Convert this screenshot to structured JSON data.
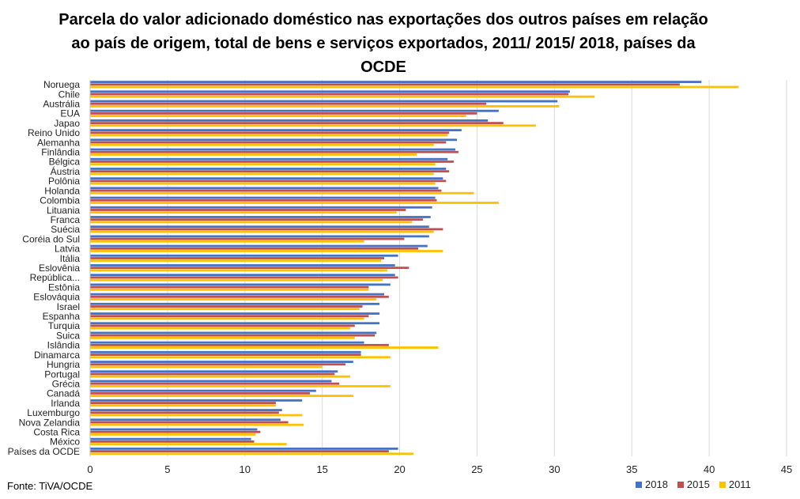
{
  "chart_data": {
    "type": "bar",
    "orientation": "horizontal",
    "title": "Parcela do valor adicionado doméstico nas exportações dos outros países em relação ao país de origem, total de bens e serviços exportados, 2011/ 2015/ 2018, países da OCDE",
    "source": "Fonte: TiVA/OCDE",
    "xlim": [
      0,
      45
    ],
    "xticks": [
      0,
      5,
      10,
      15,
      20,
      25,
      30,
      35,
      40,
      45
    ],
    "grid": "vertical",
    "legend_position": "bottom-right",
    "categories": [
      "Noruega",
      "Chile",
      "Austrália",
      "EUA",
      "Japao",
      "Reino Unido",
      "Alemanha",
      "Finlândia",
      "Bélgica",
      "Áustria",
      "Polônia",
      "Holanda",
      "Colombia",
      "Lituania",
      "Franca",
      "Suécia",
      "Coréia do Sul",
      "Latvia",
      "Itália",
      "Eslovênia",
      "República...",
      "Estônia",
      "Eslováquia",
      "Israel",
      "Espanha",
      "Turquia",
      "Suica",
      "Islândia",
      "Dinamarca",
      "Hungria",
      "Portugal",
      "Grécia",
      "Canadá",
      "Irlanda",
      "Luxemburgo",
      "Nova Zelandia",
      "Costa Rica",
      "México",
      "Países da OCDE"
    ],
    "series": [
      {
        "name": "2018",
        "color": "#4472c4",
        "values": [
          39.5,
          31,
          30.2,
          26.4,
          25.7,
          24,
          23.7,
          23.6,
          23.1,
          23,
          22.8,
          22.5,
          22.3,
          22.1,
          22,
          21.9,
          21.9,
          21.8,
          19.9,
          19.7,
          19.7,
          19.4,
          19,
          18.7,
          18.7,
          18.7,
          18.5,
          17.7,
          17.5,
          17,
          16,
          15.6,
          14.6,
          13.7,
          12.4,
          12.3,
          10.8,
          10.4,
          19.9
        ],
        "values_note": ""
      },
      {
        "name": "2015",
        "color": "#c0504d",
        "values": [
          38.1,
          30.9,
          25.6,
          25,
          26.7,
          23.2,
          23,
          23.8,
          23.5,
          23.2,
          23,
          22.7,
          22.4,
          20.4,
          21.5,
          22.8,
          20.3,
          21.2,
          19,
          20.6,
          19.9,
          18,
          19.3,
          17.6,
          18,
          17.1,
          18.4,
          19.3,
          17.5,
          16.5,
          15.8,
          16.1,
          14.2,
          12,
          12.2,
          12.8,
          11,
          10.6,
          19.3
        ]
      },
      {
        "name": "2011",
        "color": "#ffc000",
        "values": [
          41.9,
          32.6,
          30.3,
          24.3,
          28.8,
          23.1,
          22.2,
          21.1,
          22.3,
          22.2,
          22.3,
          24.8,
          26.4,
          19.8,
          20.8,
          22.2,
          17.7,
          22.8,
          18.8,
          19.2,
          18.9,
          18,
          18.5,
          17.4,
          17.7,
          16.8,
          17.1,
          22.5,
          19.4,
          15,
          16.8,
          19.4,
          17,
          12,
          13.7,
          13.8,
          10.7,
          12.7,
          20.9
        ]
      }
    ]
  }
}
